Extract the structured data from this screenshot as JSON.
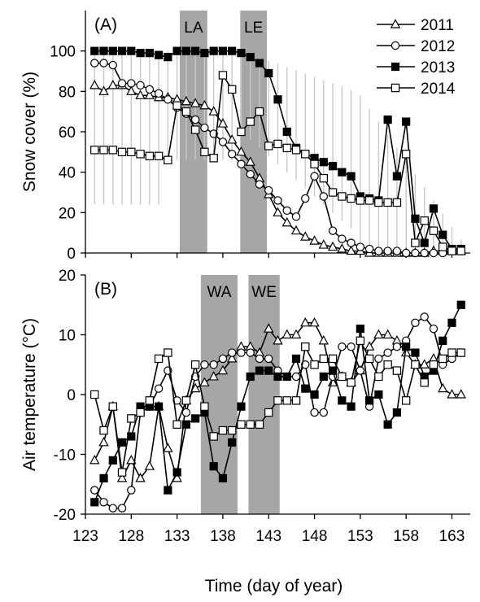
{
  "chart_data": [
    {
      "type": "line",
      "panel_label": "(A)",
      "ylabel": "Snow cover (%)",
      "ylim": [
        0,
        120
      ],
      "yticks": [
        0,
        20,
        40,
        60,
        80,
        100
      ],
      "grid": false,
      "legend_position": "top-right",
      "error_bars": "gray vertical range bars",
      "shaded_bands": [
        {
          "label": "LA",
          "x_start": 133.3,
          "x_end": 136.3
        },
        {
          "label": "LE",
          "x_start": 139.9,
          "x_end": 142.8
        }
      ],
      "series": [
        {
          "name": "2011",
          "marker": "open-triangle",
          "x": [
            124,
            125,
            126,
            127,
            128,
            129,
            130,
            131,
            132,
            133,
            134,
            135,
            136,
            137,
            138,
            139,
            140,
            141,
            142,
            143,
            144,
            145,
            146,
            147,
            148,
            149,
            150,
            151,
            152,
            153,
            154,
            155,
            156,
            157,
            158,
            159,
            160,
            161,
            162,
            163,
            164
          ],
          "y": [
            83,
            80,
            83,
            83,
            80,
            78,
            78,
            77,
            77,
            76,
            75,
            74,
            73,
            70,
            64,
            56,
            50,
            45,
            37,
            29,
            20,
            15,
            11,
            8,
            6,
            4,
            3,
            2,
            1,
            1,
            0,
            0,
            0,
            0,
            0,
            0,
            0,
            1,
            1,
            1,
            1
          ]
        },
        {
          "name": "2012",
          "marker": "open-circle",
          "x": [
            124,
            125,
            126,
            127,
            128,
            129,
            130,
            131,
            132,
            133,
            134,
            135,
            136,
            137,
            138,
            139,
            140,
            141,
            142,
            143,
            144,
            145,
            146,
            147,
            148,
            149,
            150,
            151,
            152,
            153,
            154,
            155,
            156,
            157,
            158,
            159,
            160,
            161,
            162,
            163,
            164
          ],
          "y": [
            94,
            94,
            93,
            84,
            84,
            83,
            81,
            79,
            76,
            72,
            69,
            66,
            62,
            59,
            55,
            49,
            44,
            39,
            34,
            31,
            26,
            21,
            18,
            27,
            38,
            28,
            11,
            7,
            5,
            3,
            2,
            1,
            1,
            1,
            0,
            0,
            0,
            0,
            0,
            1,
            1
          ]
        },
        {
          "name": "2013",
          "marker": "filled-square",
          "x": [
            124,
            125,
            126,
            127,
            128,
            129,
            130,
            131,
            132,
            133,
            134,
            135,
            136,
            137,
            138,
            139,
            140,
            141,
            142,
            143,
            144,
            145,
            146,
            147,
            148,
            149,
            150,
            151,
            152,
            153,
            154,
            155,
            156,
            157,
            158,
            159,
            160,
            161,
            162,
            163,
            164
          ],
          "y": [
            100,
            100,
            100,
            100,
            100,
            99,
            99,
            98,
            97,
            100,
            100,
            100,
            99,
            100,
            100,
            100,
            99,
            97,
            94,
            89,
            76,
            60,
            52,
            49,
            47,
            45,
            43,
            40,
            38,
            28,
            27,
            26,
            66,
            38,
            65,
            17,
            5,
            22,
            9,
            2,
            2
          ]
        },
        {
          "name": "2014",
          "marker": "open-square",
          "x": [
            124,
            125,
            126,
            127,
            128,
            129,
            130,
            131,
            132,
            133,
            134,
            135,
            136,
            137,
            138,
            139,
            140,
            141,
            142,
            143,
            144,
            145,
            146,
            147,
            148,
            149,
            150,
            151,
            152,
            153,
            154,
            155,
            156,
            157,
            158,
            159,
            160,
            161,
            162,
            163,
            164
          ],
          "y": [
            51,
            51,
            51,
            50,
            50,
            49,
            48,
            48,
            46,
            73,
            70,
            61,
            50,
            47,
            88,
            81,
            60,
            65,
            70,
            53,
            54,
            52,
            51,
            49,
            44,
            37,
            30,
            28,
            27,
            26,
            26,
            25,
            25,
            25,
            49,
            5,
            16,
            11,
            3,
            1,
            1
          ]
        }
      ]
    },
    {
      "type": "line",
      "panel_label": "(B)",
      "ylabel": "Air temperature (°C)",
      "xlabel": "Time (day of year)",
      "ylim": [
        -20,
        20
      ],
      "yticks": [
        -20,
        -10,
        0,
        10,
        20
      ],
      "xlim": [
        123,
        165
      ],
      "xticks": [
        123,
        128,
        133,
        138,
        143,
        148,
        153,
        158,
        163
      ],
      "grid": false,
      "shaded_bands": [
        {
          "label": "WA",
          "x_start": 135.6,
          "x_end": 139.6
        },
        {
          "label": "WE",
          "x_start": 140.8,
          "x_end": 144.2
        }
      ],
      "series": [
        {
          "name": "2011",
          "marker": "open-triangle",
          "x": [
            124,
            125,
            126,
            127,
            128,
            129,
            130,
            131,
            132,
            133,
            134,
            135,
            136,
            137,
            138,
            139,
            140,
            141,
            142,
            143,
            144,
            145,
            146,
            147,
            148,
            149,
            150,
            151,
            152,
            153,
            154,
            155,
            156,
            157,
            158,
            159,
            160,
            161,
            162,
            163,
            164
          ],
          "y": [
            -11,
            -8,
            -2,
            -14,
            -11,
            -14,
            -12,
            -2,
            -9,
            -14,
            -1,
            1,
            2,
            3,
            4,
            6,
            8,
            8,
            7,
            11,
            9,
            10,
            10,
            12,
            12,
            9,
            2,
            3,
            2,
            4,
            8,
            10,
            10,
            9,
            7,
            5,
            5,
            6,
            1,
            0,
            0
          ]
        },
        {
          "name": "2012",
          "marker": "open-circle",
          "x": [
            124,
            125,
            126,
            127,
            128,
            129,
            130,
            131,
            132,
            133,
            134,
            135,
            136,
            137,
            138,
            139,
            140,
            141,
            142,
            143,
            144,
            145,
            146,
            147,
            148,
            149,
            150,
            151,
            152,
            153,
            154,
            155,
            156,
            157,
            158,
            159,
            160,
            161,
            162,
            163,
            164
          ],
          "y": [
            -16,
            -18,
            -19,
            -19,
            -16,
            -3,
            -2,
            1,
            4,
            -1,
            -3,
            3,
            5,
            5,
            6,
            7,
            7,
            7,
            6,
            6,
            4,
            3,
            3,
            5,
            -3,
            -3,
            3,
            8,
            8,
            4,
            -2,
            6,
            7,
            8,
            9,
            12,
            13,
            11,
            5,
            6,
            7
          ]
        },
        {
          "name": "2013",
          "marker": "filled-square",
          "x": [
            124,
            125,
            126,
            127,
            128,
            129,
            130,
            131,
            132,
            133,
            134,
            135,
            136,
            137,
            138,
            139,
            140,
            141,
            142,
            143,
            144,
            145,
            146,
            147,
            148,
            149,
            150,
            151,
            152,
            153,
            154,
            155,
            156,
            157,
            158,
            159,
            160,
            161,
            162,
            163,
            164
          ],
          "y": [
            -18,
            -14,
            -11,
            -8,
            -7,
            -2,
            -2,
            -2,
            -16,
            -13,
            -5,
            -4,
            -3,
            -12,
            -14,
            -8,
            -2,
            3,
            4,
            4,
            3,
            3,
            6,
            1,
            0,
            3,
            4,
            -1,
            -2,
            11,
            -1,
            0,
            -5,
            -3,
            8,
            7,
            3,
            4,
            9,
            12,
            15
          ]
        },
        {
          "name": "2014",
          "marker": "open-square",
          "x": [
            124,
            125,
            126,
            127,
            128,
            129,
            130,
            131,
            132,
            133,
            134,
            135,
            136,
            137,
            138,
            139,
            140,
            141,
            142,
            143,
            144,
            145,
            146,
            147,
            148,
            149,
            150,
            151,
            152,
            153,
            154,
            155,
            156,
            157,
            158,
            159,
            160,
            161,
            162,
            163,
            164
          ],
          "y": [
            0,
            -6,
            -2,
            -13,
            -4,
            -3,
            -1,
            6,
            7,
            -5,
            -1,
            5,
            -2,
            -7,
            -6,
            -6,
            -5,
            -5,
            -5,
            -3,
            -1,
            -1,
            -1,
            8,
            5,
            6,
            6,
            3,
            2,
            9,
            6,
            3,
            5,
            4,
            -1,
            5,
            2,
            5,
            6,
            7,
            7
          ]
        }
      ]
    }
  ]
}
